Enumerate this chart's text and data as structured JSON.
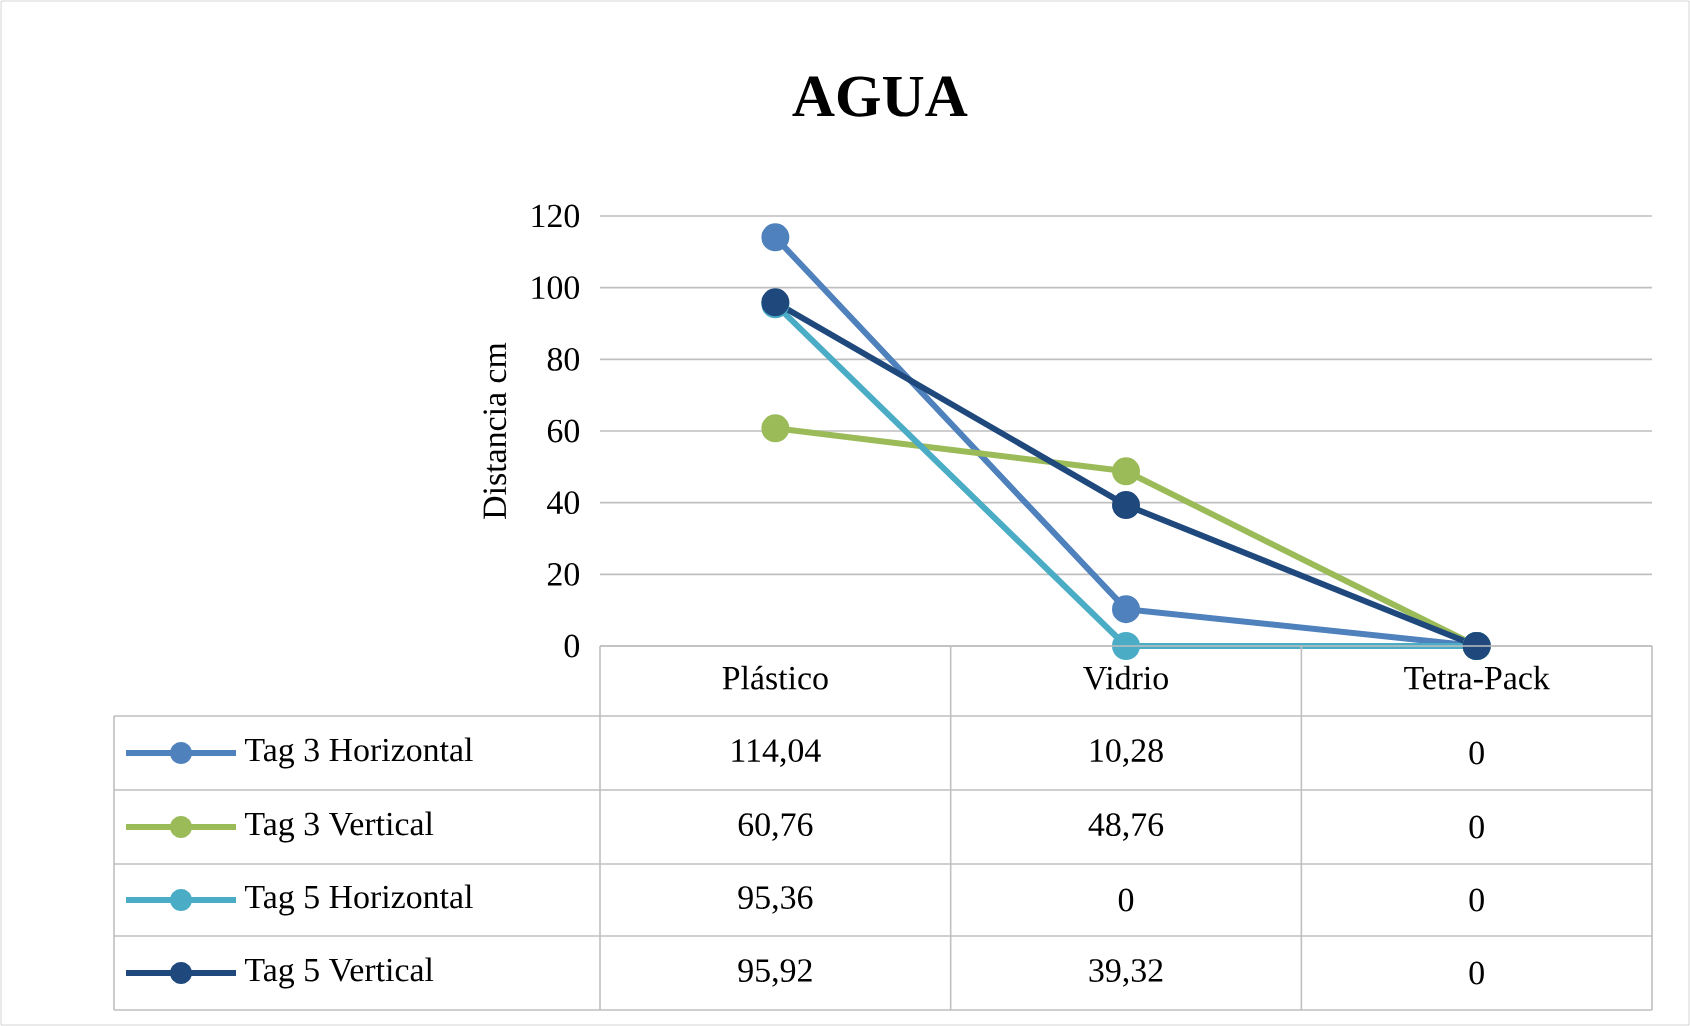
{
  "chart_data": {
    "type": "line",
    "title": "AGUA",
    "ylabel": "Distancia cm",
    "categories": [
      "Plástico",
      "Vidrio",
      "Tetra-Pack"
    ],
    "series": [
      {
        "name": "Tag 3 Horizontal",
        "color": "#4f81bd",
        "values": [
          114.04,
          10.28,
          0
        ],
        "value_labels": [
          "114,04",
          "10,28",
          "0"
        ]
      },
      {
        "name": "Tag 3 Vertical",
        "color": "#9bbb59",
        "values": [
          60.76,
          48.76,
          0
        ],
        "value_labels": [
          "60,76",
          "48,76",
          "0"
        ]
      },
      {
        "name": "Tag 5 Horizontal",
        "color": "#4bacc6",
        "values": [
          95.36,
          0,
          0
        ],
        "value_labels": [
          "95,36",
          "0",
          "0"
        ]
      },
      {
        "name": "Tag 5 Vertical",
        "color": "#1f497d",
        "values": [
          95.92,
          39.32,
          0
        ],
        "value_labels": [
          "95,92",
          "39,32",
          "0"
        ]
      }
    ],
    "ylim": [
      0,
      120
    ],
    "yticks": [
      0,
      20,
      40,
      60,
      80,
      100,
      120
    ],
    "grid": "y",
    "legend": "bottom",
    "marker": "circle",
    "line_style": "solid"
  }
}
